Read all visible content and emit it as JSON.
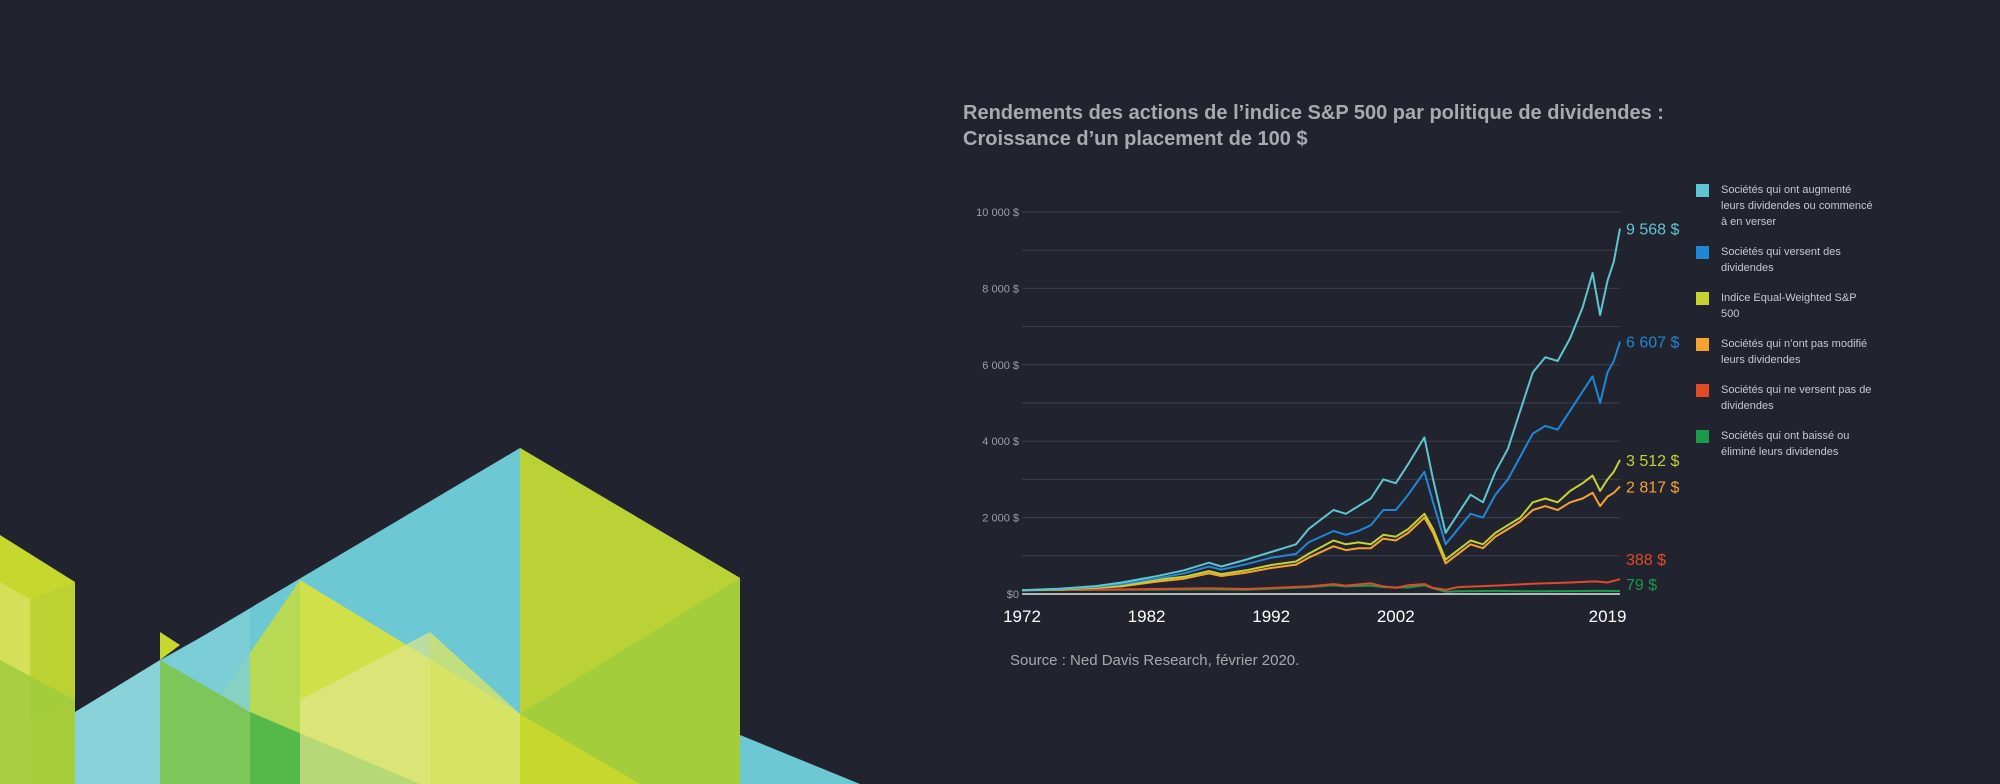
{
  "chart_data": {
    "type": "line",
    "title": "Rendements des actions de l’indice S&P 500 par politique de dividendes :",
    "subtitle": "Croissance d’un placement de 100 $",
    "source": "Source : Ned Davis Research, février 2020.",
    "x_ticks": [
      "1972",
      "1982",
      "1992",
      "2002",
      "2019"
    ],
    "y_ticks": [
      "$0",
      "2 000 $",
      "4 000 $",
      "6 000 $",
      "8 000 $",
      "10 000 $"
    ],
    "ylim": [
      0,
      10000
    ],
    "xlim": [
      1972,
      2020
    ],
    "grid": true,
    "legend_position": "right",
    "series": [
      {
        "name": "Sociétés qui ont augmenté leurs dividendes ou commencé à en verser",
        "end_label": "9 568 $",
        "color": "#5ec6d0",
        "points": [
          [
            1972,
            100
          ],
          [
            1975,
            140
          ],
          [
            1978,
            210
          ],
          [
            1980,
            300
          ],
          [
            1983,
            480
          ],
          [
            1985,
            620
          ],
          [
            1987,
            820
          ],
          [
            1988,
            720
          ],
          [
            1990,
            900
          ],
          [
            1992,
            1100
          ],
          [
            1994,
            1300
          ],
          [
            1995,
            1700
          ],
          [
            1997,
            2200
          ],
          [
            1998,
            2100
          ],
          [
            1999,
            2300
          ],
          [
            2000,
            2500
          ],
          [
            2001,
            3000
          ],
          [
            2002,
            2900
          ],
          [
            2003,
            3400
          ],
          [
            2004.3,
            4100
          ],
          [
            2005,
            3000
          ],
          [
            2006,
            1600
          ],
          [
            2007,
            2100
          ],
          [
            2008,
            2600
          ],
          [
            2009,
            2400
          ],
          [
            2010,
            3200
          ],
          [
            2011,
            3800
          ],
          [
            2012,
            4800
          ],
          [
            2013,
            5800
          ],
          [
            2014,
            6200
          ],
          [
            2015,
            6100
          ],
          [
            2016,
            6700
          ],
          [
            2017,
            7500
          ],
          [
            2017.8,
            8400
          ],
          [
            2018.4,
            7300
          ],
          [
            2019,
            8200
          ],
          [
            2019.5,
            8700
          ],
          [
            2020,
            9568
          ]
        ]
      },
      {
        "name": "Sociétés qui versent des dividendes",
        "end_label": "6 607 $",
        "color": "#1f87d6",
        "points": [
          [
            1972,
            100
          ],
          [
            1975,
            130
          ],
          [
            1978,
            190
          ],
          [
            1980,
            260
          ],
          [
            1983,
            420
          ],
          [
            1985,
            540
          ],
          [
            1987,
            720
          ],
          [
            1988,
            640
          ],
          [
            1990,
            780
          ],
          [
            1992,
            950
          ],
          [
            1994,
            1050
          ],
          [
            1995,
            1350
          ],
          [
            1997,
            1650
          ],
          [
            1998,
            1550
          ],
          [
            1999,
            1650
          ],
          [
            2000,
            1800
          ],
          [
            2001,
            2200
          ],
          [
            2002,
            2200
          ],
          [
            2003,
            2600
          ],
          [
            2004.3,
            3200
          ],
          [
            2005,
            2400
          ],
          [
            2006,
            1300
          ],
          [
            2007,
            1700
          ],
          [
            2008,
            2100
          ],
          [
            2009,
            2000
          ],
          [
            2010,
            2600
          ],
          [
            2011,
            3000
          ],
          [
            2012,
            3600
          ],
          [
            2013,
            4200
          ],
          [
            2014,
            4400
          ],
          [
            2015,
            4300
          ],
          [
            2016,
            4800
          ],
          [
            2017,
            5300
          ],
          [
            2017.8,
            5700
          ],
          [
            2018.4,
            5000
          ],
          [
            2019,
            5800
          ],
          [
            2019.5,
            6100
          ],
          [
            2020,
            6607
          ]
        ]
      },
      {
        "name": "Indice Equal-Weighted S&P 500",
        "end_label": "3 512 $",
        "color": "#c5d22f",
        "points": [
          [
            1972,
            100
          ],
          [
            1975,
            120
          ],
          [
            1978,
            170
          ],
          [
            1980,
            220
          ],
          [
            1983,
            380
          ],
          [
            1985,
            450
          ],
          [
            1987,
            600
          ],
          [
            1988,
            520
          ],
          [
            1990,
            620
          ],
          [
            1992,
            760
          ],
          [
            1994,
            850
          ],
          [
            1995,
            1050
          ],
          [
            1997,
            1400
          ],
          [
            1998,
            1300
          ],
          [
            1999,
            1350
          ],
          [
            2000,
            1300
          ],
          [
            2001,
            1550
          ],
          [
            2002,
            1500
          ],
          [
            2003,
            1700
          ],
          [
            2004.3,
            2100
          ],
          [
            2005,
            1700
          ],
          [
            2006,
            900
          ],
          [
            2007,
            1150
          ],
          [
            2008,
            1400
          ],
          [
            2009,
            1300
          ],
          [
            2010,
            1600
          ],
          [
            2011,
            1800
          ],
          [
            2012,
            2000
          ],
          [
            2013,
            2400
          ],
          [
            2014,
            2500
          ],
          [
            2015,
            2400
          ],
          [
            2016,
            2700
          ],
          [
            2017,
            2900
          ],
          [
            2017.8,
            3100
          ],
          [
            2018.4,
            2700
          ],
          [
            2019,
            3000
          ],
          [
            2019.5,
            3200
          ],
          [
            2020,
            3512
          ]
        ]
      },
      {
        "name": "Sociétés qui n’ont pas modifié leurs dividendes",
        "end_label": "2 817 $",
        "color": "#f6a230",
        "points": [
          [
            1972,
            100
          ],
          [
            1975,
            115
          ],
          [
            1978,
            160
          ],
          [
            1980,
            200
          ],
          [
            1983,
            330
          ],
          [
            1985,
            400
          ],
          [
            1987,
            540
          ],
          [
            1988,
            470
          ],
          [
            1990,
            560
          ],
          [
            1992,
            680
          ],
          [
            1994,
            770
          ],
          [
            1995,
            950
          ],
          [
            1997,
            1250
          ],
          [
            1998,
            1150
          ],
          [
            1999,
            1200
          ],
          [
            2000,
            1200
          ],
          [
            2001,
            1450
          ],
          [
            2002,
            1400
          ],
          [
            2003,
            1600
          ],
          [
            2004.3,
            2000
          ],
          [
            2005,
            1600
          ],
          [
            2006,
            800
          ],
          [
            2007,
            1050
          ],
          [
            2008,
            1300
          ],
          [
            2009,
            1200
          ],
          [
            2010,
            1500
          ],
          [
            2011,
            1700
          ],
          [
            2012,
            1900
          ],
          [
            2013,
            2200
          ],
          [
            2014,
            2300
          ],
          [
            2015,
            2200
          ],
          [
            2016,
            2400
          ],
          [
            2017,
            2500
          ],
          [
            2017.8,
            2650
          ],
          [
            2018.4,
            2300
          ],
          [
            2019,
            2550
          ],
          [
            2019.5,
            2650
          ],
          [
            2020,
            2817
          ]
        ]
      },
      {
        "name": "Sociétés qui ne versent pas de dividendes",
        "end_label": "388 $",
        "color": "#e04a25",
        "points": [
          [
            1972,
            100
          ],
          [
            1980,
            120
          ],
          [
            1987,
            150
          ],
          [
            1990,
            130
          ],
          [
            1995,
            200
          ],
          [
            1997,
            260
          ],
          [
            1998,
            220
          ],
          [
            2000,
            280
          ],
          [
            2001,
            200
          ],
          [
            2002,
            160
          ],
          [
            2003,
            230
          ],
          [
            2004.3,
            260
          ],
          [
            2005,
            160
          ],
          [
            2006,
            110
          ],
          [
            2007,
            180
          ],
          [
            2010,
            220
          ],
          [
            2013,
            270
          ],
          [
            2016,
            300
          ],
          [
            2018,
            330
          ],
          [
            2019,
            300
          ],
          [
            2020,
            388
          ]
        ]
      },
      {
        "name": "Sociétés qui ont baissé ou éliminé leurs dividendes",
        "end_label": "79 $",
        "color": "#1b9a48",
        "points": [
          [
            1972,
            100
          ],
          [
            1980,
            110
          ],
          [
            1987,
            120
          ],
          [
            1990,
            110
          ],
          [
            1995,
            180
          ],
          [
            1997,
            230
          ],
          [
            1998,
            200
          ],
          [
            2000,
            220
          ],
          [
            2001,
            180
          ],
          [
            2003,
            170
          ],
          [
            2004.3,
            230
          ],
          [
            2005,
            150
          ],
          [
            2006,
            60
          ],
          [
            2007,
            70
          ],
          [
            2010,
            80
          ],
          [
            2013,
            70
          ],
          [
            2016,
            75
          ],
          [
            2018,
            80
          ],
          [
            2020,
            79
          ]
        ]
      }
    ]
  }
}
